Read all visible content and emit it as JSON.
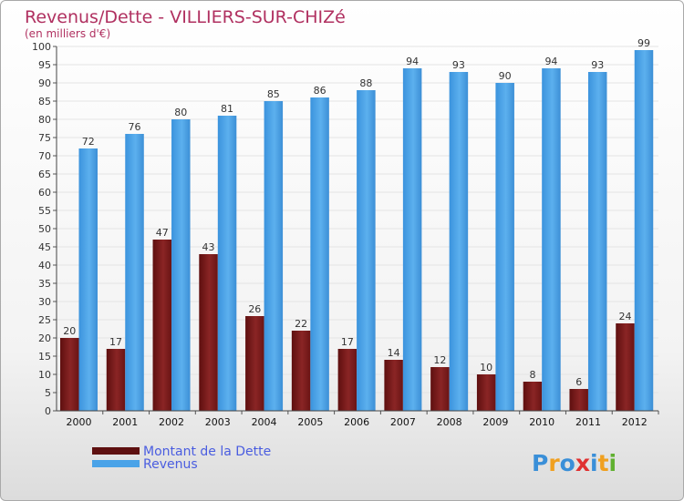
{
  "chart_data": {
    "type": "bar",
    "title": "Revenus/Dette - VILLIERS-SUR-CHIZé",
    "subtitle": "(en milliers d'€)",
    "categories": [
      "2000",
      "2001",
      "2002",
      "2003",
      "2004",
      "2005",
      "2006",
      "2007",
      "2008",
      "2009",
      "2010",
      "2011",
      "2012"
    ],
    "series": [
      {
        "name": "Montant de la Dette",
        "color": "#7a1a1a",
        "values": [
          20,
          17,
          47,
          43,
          26,
          22,
          17,
          14,
          12,
          10,
          8,
          6,
          24
        ]
      },
      {
        "name": "Revenus",
        "color": "#4aa3e8",
        "values": [
          72,
          76,
          80,
          81,
          85,
          86,
          88,
          94,
          93,
          90,
          94,
          93,
          99
        ]
      }
    ],
    "ylim": [
      0,
      100
    ],
    "ytick_step": 5,
    "grid": true,
    "legend": "bottom-left"
  },
  "brand": {
    "logo_letters": [
      "P",
      "r",
      "o",
      "x",
      "i",
      "t",
      "i"
    ],
    "logo_colors": [
      "#3a8fd8",
      "#f0a020",
      "#3a8fd8",
      "#e03030",
      "#3a8fd8",
      "#f0a020",
      "#60b030"
    ]
  }
}
